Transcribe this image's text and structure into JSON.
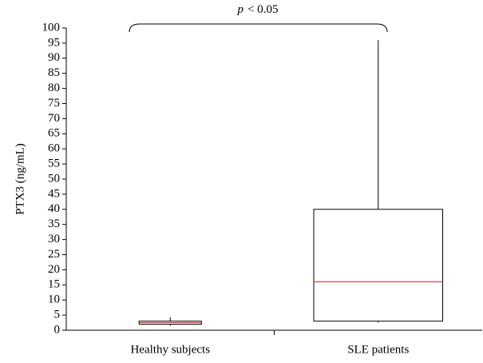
{
  "chart_data": {
    "type": "box",
    "y_label": "PTX3 (ng/mL)",
    "annotation": {
      "variable": "p",
      "text": "< 0.05"
    },
    "categories": [
      "Healthy subjects",
      "SLE patients"
    ],
    "boxes": [
      {
        "min": 1.5,
        "q1": 2,
        "median": 2.5,
        "q3": 3,
        "max": 4.3
      },
      {
        "min": 2.5,
        "q1": 3,
        "median": 16,
        "q3": 40,
        "max": 96
      }
    ],
    "median_color": "#e8262a",
    "ylim": [
      0,
      100
    ],
    "yticks": [
      0,
      5,
      10,
      15,
      20,
      25,
      30,
      35,
      40,
      45,
      50,
      55,
      60,
      65,
      70,
      75,
      80,
      85,
      90,
      95,
      100
    ]
  }
}
